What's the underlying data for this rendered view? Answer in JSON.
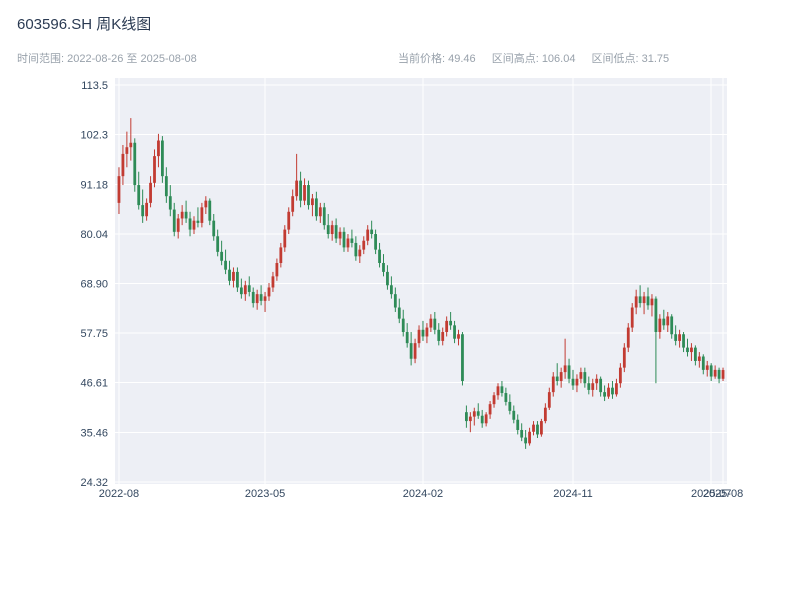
{
  "header": {
    "title": "603596.SH 周K线图",
    "range_text": "时间范围: 2022-08-26 至 2025-08-08",
    "stats": [
      "当前价格: 49.46",
      "区间高点: 106.04",
      "区间低点: 31.75"
    ]
  },
  "chart_data": {
    "type": "candlestick",
    "symbol": "603596.SH",
    "title": "603596.SH 周K线图",
    "interval": "weekly",
    "date_start": "2022-08-26",
    "date_end": "2025-08-08",
    "stats": {
      "current_price": 49.46,
      "range_high": 106.04,
      "range_low": 31.75
    },
    "ylim": [
      24.32,
      113.47
    ],
    "yticks": [
      {
        "label": "113.5",
        "value": 113.47
      },
      {
        "label": "102.3",
        "value": 102.32
      },
      {
        "label": "91.18",
        "value": 91.18
      },
      {
        "label": "80.04",
        "value": 80.04
      },
      {
        "label": "68.90",
        "value": 68.89
      },
      {
        "label": "57.75",
        "value": 57.75
      },
      {
        "label": "46.61",
        "value": 46.61
      },
      {
        "label": "35.46",
        "value": 35.46
      },
      {
        "label": "24.32",
        "value": 24.32
      }
    ],
    "xticks": [
      {
        "label": "2022-08",
        "week": 0
      },
      {
        "label": "2023-05",
        "week": 37
      },
      {
        "label": "2024-02",
        "week": 77
      },
      {
        "label": "2024-11",
        "week": 115
      },
      {
        "label": "2025-07",
        "week": 150
      },
      {
        "label": "2025-08",
        "week": 153
      }
    ],
    "colors": {
      "up": "#c23b32",
      "down": "#2e8b57",
      "plot_bg": "#edeff5",
      "grid": "#ffffff",
      "tick_text": "#33475f",
      "title_text": "#2a3a52",
      "subtitle_text": "#98a1ab"
    },
    "candles": [
      [
        87,
        95,
        84.5,
        93
      ],
      [
        93,
        100,
        91,
        98
      ],
      [
        98,
        103,
        95,
        99.5
      ],
      [
        99.5,
        106.04,
        96.5,
        100.5
      ],
      [
        100.5,
        101.5,
        89.5,
        91
      ],
      [
        91,
        94,
        85.5,
        86.5
      ],
      [
        86.5,
        90,
        82.5,
        84
      ],
      [
        84,
        88,
        83,
        87
      ],
      [
        87,
        93,
        86,
        91.5
      ],
      [
        91.5,
        99,
        90.5,
        97.5
      ],
      [
        97.5,
        102.5,
        95,
        101
      ],
      [
        101,
        102,
        91.5,
        93
      ],
      [
        93,
        95,
        87,
        88.5
      ],
      [
        88.5,
        91,
        84,
        85.5
      ],
      [
        85.5,
        87,
        79.5,
        80.5
      ],
      [
        80.5,
        84.5,
        79,
        83.5
      ],
      [
        83.5,
        86.5,
        82,
        85
      ],
      [
        85,
        87.5,
        82.5,
        83.5
      ],
      [
        83.5,
        85,
        79.5,
        81
      ],
      [
        81,
        84,
        80,
        83
      ],
      [
        83,
        86,
        81.5,
        82.5
      ],
      [
        82.5,
        87,
        81.5,
        86
      ],
      [
        86,
        88.5,
        84.5,
        87.5
      ],
      [
        87.5,
        88,
        82,
        83
      ],
      [
        83,
        84.5,
        78.5,
        79.5
      ],
      [
        79.5,
        81,
        75,
        76
      ],
      [
        76,
        78.5,
        73,
        74
      ],
      [
        74,
        76.5,
        71,
        72
      ],
      [
        72,
        74,
        68.5,
        69.5
      ],
      [
        69.5,
        72.5,
        68,
        71.5
      ],
      [
        71.5,
        72.5,
        67,
        68
      ],
      [
        68,
        70,
        65.5,
        66.5
      ],
      [
        66.5,
        69.5,
        65,
        68.5
      ],
      [
        68.5,
        70.5,
        66,
        67
      ],
      [
        67,
        68,
        63.5,
        64.5
      ],
      [
        64.5,
        67.5,
        63,
        66.5
      ],
      [
        66.5,
        68.5,
        64,
        65
      ],
      [
        65,
        67,
        62.5,
        66
      ],
      [
        66,
        69,
        65,
        68
      ],
      [
        68,
        71.5,
        67,
        70.5
      ],
      [
        70.5,
        74.5,
        69.5,
        73.5
      ],
      [
        73.5,
        78,
        72.5,
        77
      ],
      [
        77,
        82,
        76,
        81
      ],
      [
        81,
        86,
        80,
        85
      ],
      [
        85,
        90,
        84,
        88.5
      ],
      [
        88.5,
        98,
        87.5,
        92
      ],
      [
        92,
        94,
        86,
        87.5
      ],
      [
        87.5,
        92.5,
        86.5,
        91
      ],
      [
        91,
        92,
        85.5,
        86.5
      ],
      [
        86.5,
        89,
        84,
        88
      ],
      [
        88,
        89.5,
        83,
        84
      ],
      [
        84,
        87,
        82.5,
        86
      ],
      [
        86,
        87,
        81,
        82
      ],
      [
        82,
        84.5,
        79,
        80
      ],
      [
        80,
        83,
        78.5,
        82
      ],
      [
        82,
        83.5,
        78,
        79
      ],
      [
        79,
        81.5,
        77.5,
        80.5
      ],
      [
        80.5,
        81.5,
        76,
        77
      ],
      [
        77,
        80,
        76,
        79
      ],
      [
        79,
        81,
        77,
        78
      ],
      [
        78,
        79.5,
        74,
        75
      ],
      [
        75,
        77.5,
        73.5,
        76.5
      ],
      [
        76.5,
        79.5,
        75.5,
        78.5
      ],
      [
        78.5,
        82,
        77.5,
        81
      ],
      [
        81,
        83,
        79,
        80
      ],
      [
        80,
        81,
        75.5,
        76.5
      ],
      [
        76.5,
        78,
        72.5,
        73.5
      ],
      [
        73.5,
        75.5,
        70.5,
        71.5
      ],
      [
        71.5,
        73,
        67.5,
        68.5
      ],
      [
        68.5,
        70.5,
        65.5,
        66.5
      ],
      [
        66.5,
        68,
        62.5,
        63.5
      ],
      [
        63.5,
        65.5,
        60,
        61
      ],
      [
        61,
        63,
        57,
        58
      ],
      [
        58,
        60,
        54.5,
        55.5
      ],
      [
        55.5,
        58,
        50.5,
        52
      ],
      [
        52,
        56.5,
        51,
        55.5
      ],
      [
        55.5,
        59.5,
        54.5,
        58.5
      ],
      [
        58.5,
        60.5,
        56,
        57
      ],
      [
        57,
        60,
        55.5,
        59
      ],
      [
        59,
        62,
        58,
        61
      ],
      [
        61,
        62.5,
        57.5,
        58.5
      ],
      [
        58.5,
        60,
        55,
        56
      ],
      [
        56,
        59,
        55,
        58
      ],
      [
        58,
        61.5,
        57,
        60.5
      ],
      [
        60.5,
        62.5,
        58.5,
        59.5
      ],
      [
        59.5,
        60.5,
        55.5,
        56.5
      ],
      [
        56.5,
        58.5,
        55,
        57.5
      ],
      [
        57.5,
        58,
        46,
        47
      ],
      [
        40,
        41.5,
        36.5,
        38
      ],
      [
        38,
        40,
        35.5,
        39
      ],
      [
        39,
        41,
        37,
        40.2
      ],
      [
        40.2,
        42,
        38.5,
        39.2
      ],
      [
        39.2,
        40.5,
        36.5,
        37.5
      ],
      [
        37.5,
        40,
        36.8,
        39.5
      ],
      [
        39.5,
        42.5,
        38.5,
        41.8
      ],
      [
        41.8,
        44.5,
        41,
        43.8
      ],
      [
        43.8,
        46.5,
        42.8,
        45.8
      ],
      [
        45.8,
        47,
        43.5,
        44.3
      ],
      [
        44.3,
        45.5,
        41.5,
        42.3
      ],
      [
        42.3,
        44,
        39.5,
        40.3
      ],
      [
        40.3,
        41.5,
        37.5,
        38.3
      ],
      [
        38.3,
        39.5,
        35,
        36
      ],
      [
        36,
        37.5,
        33.5,
        34.3
      ],
      [
        34.3,
        36,
        31.75,
        33
      ],
      [
        33,
        36.5,
        32.5,
        35.6
      ],
      [
        35.6,
        38,
        34.8,
        37.2
      ],
      [
        37.2,
        38,
        34.2,
        35
      ],
      [
        35,
        38.5,
        34.5,
        38
      ],
      [
        38,
        42,
        37.5,
        41
      ],
      [
        41,
        45.5,
        40.5,
        44.5
      ],
      [
        44.5,
        49,
        43.5,
        48
      ],
      [
        48,
        51,
        46,
        47
      ],
      [
        47,
        50,
        45.5,
        49
      ],
      [
        49,
        56.5,
        47.5,
        50.5
      ],
      [
        50.5,
        52,
        46.5,
        47.5
      ],
      [
        47.5,
        49.5,
        45,
        46
      ],
      [
        46,
        48.5,
        44.5,
        47.5
      ],
      [
        47.5,
        50,
        46.5,
        49
      ],
      [
        49,
        50,
        45.5,
        46.5
      ],
      [
        46.5,
        48,
        44,
        45
      ],
      [
        45,
        47.5,
        43.5,
        46.5
      ],
      [
        46.5,
        48.5,
        45,
        47.5
      ],
      [
        47.5,
        48,
        43.5,
        44.5
      ],
      [
        44.5,
        46,
        42.5,
        43.5
      ],
      [
        43.5,
        46.5,
        43,
        45.5
      ],
      [
        45.5,
        47,
        43,
        44
      ],
      [
        44,
        47.5,
        43.5,
        46.5
      ],
      [
        46.5,
        51,
        45.5,
        50
      ],
      [
        50,
        55.5,
        49,
        54.5
      ],
      [
        54.5,
        60,
        53.5,
        59
      ],
      [
        59,
        64.5,
        58,
        63.5
      ],
      [
        63.5,
        67.5,
        62,
        66
      ],
      [
        66,
        68.5,
        63.5,
        64.5
      ],
      [
        64.5,
        67,
        62,
        66
      ],
      [
        66,
        68,
        63,
        64
      ],
      [
        64,
        66.5,
        61.5,
        65.5
      ],
      [
        65.5,
        66,
        46.5,
        58
      ],
      [
        58,
        62,
        56.5,
        61
      ],
      [
        61,
        63,
        58.5,
        59.5
      ],
      [
        59.5,
        62.5,
        58,
        61.5
      ],
      [
        61.5,
        62,
        56.5,
        57.5
      ],
      [
        57.5,
        59.5,
        55,
        56
      ],
      [
        56,
        58.5,
        54.5,
        57.5
      ],
      [
        57.5,
        58,
        53.5,
        54.5
      ],
      [
        54.5,
        56.5,
        52.5,
        53.5
      ],
      [
        53.5,
        55.5,
        51.5,
        54.5
      ],
      [
        54.5,
        55,
        50.5,
        51.5
      ],
      [
        51.5,
        53.5,
        50,
        52.5
      ],
      [
        52.5,
        53,
        48.5,
        49.5
      ],
      [
        49.5,
        51.5,
        48,
        50.5
      ],
      [
        50.5,
        51,
        47,
        48
      ],
      [
        48,
        50.5,
        47.5,
        49.5
      ],
      [
        49.5,
        50,
        46.5,
        47.5
      ],
      [
        47.5,
        50,
        47,
        49.46
      ]
    ]
  }
}
